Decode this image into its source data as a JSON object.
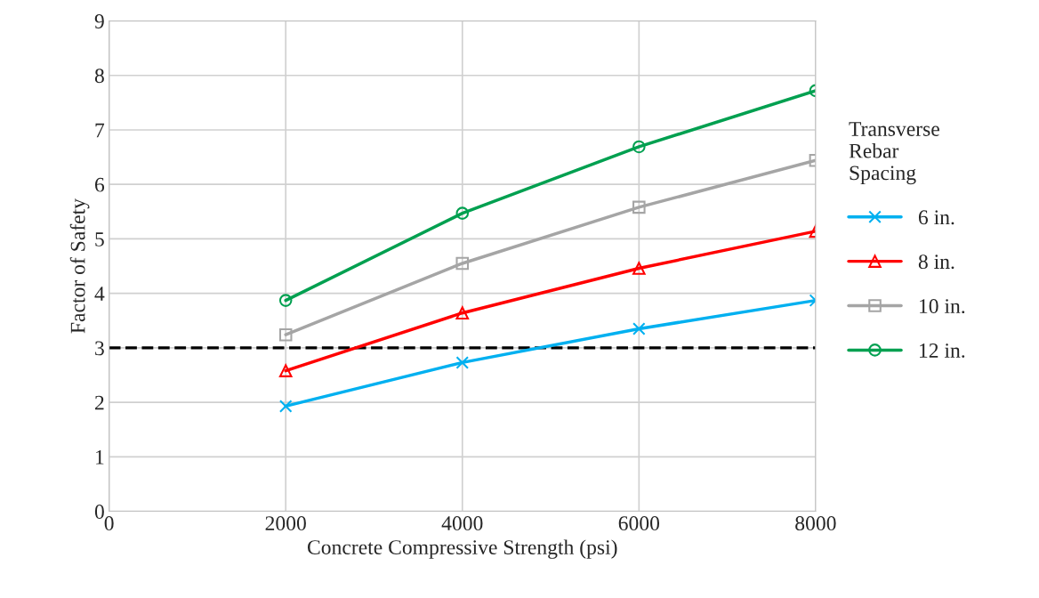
{
  "chart_data": {
    "type": "line",
    "xlabel": "Concrete Compressive Strength (psi)",
    "ylabel": "Factor of Safety",
    "legend_title": "Transverse\nRebar\nSpacing",
    "x": [
      2000,
      4000,
      6000,
      8000
    ],
    "series": [
      {
        "name": "6 in.",
        "color": "#00b0f0",
        "marker": "cross",
        "values": [
          1.93,
          2.73,
          3.35,
          3.87
        ]
      },
      {
        "name": "8 in.",
        "color": "#ff0000",
        "marker": "triangle",
        "values": [
          2.58,
          3.64,
          4.46,
          5.14
        ]
      },
      {
        "name": "10 in.",
        "color": "#a5a5a5",
        "marker": "square",
        "values": [
          3.24,
          4.55,
          5.58,
          6.44
        ]
      },
      {
        "name": "12 in.",
        "color": "#00a050",
        "marker": "circle",
        "values": [
          3.87,
          5.47,
          6.69,
          7.72
        ]
      }
    ],
    "xlim": [
      0,
      8000
    ],
    "xticks": [
      0,
      2000,
      4000,
      6000,
      8000
    ],
    "ylim": [
      0,
      9
    ],
    "yticks": [
      0,
      1,
      2,
      3,
      4,
      5,
      6,
      7,
      8,
      9
    ],
    "ref_lines": [
      {
        "axis": "y",
        "value": 3,
        "color": "#000000",
        "line_style": "dashed"
      }
    ],
    "grid": true,
    "legend": "right",
    "line_style": "solid"
  }
}
